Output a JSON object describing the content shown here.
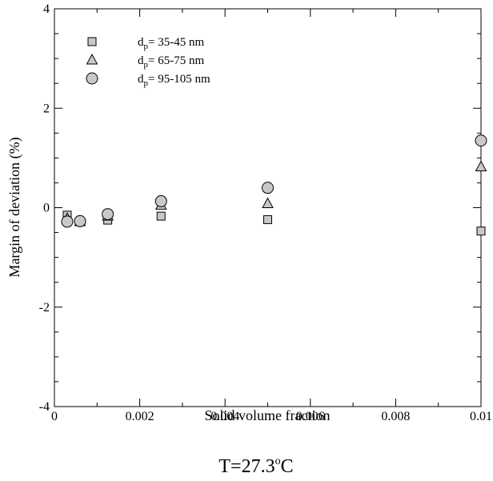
{
  "chart_data": {
    "type": "scatter",
    "xlabel": "Solid volume fraction",
    "ylabel": "Margin of deviation (%)",
    "xlim": [
      0,
      0.01
    ],
    "ylim": [
      -4,
      4
    ],
    "x_ticks": [
      "0",
      "0.002",
      "0.004",
      "0.006",
      "0.008",
      "0.01"
    ],
    "y_ticks": [
      "-4",
      "-2",
      "0",
      "2",
      "4"
    ],
    "legend_position": "top-left",
    "series": [
      {
        "label_main": "d",
        "label_sub": "p",
        "label_rest": "= 35-45 nm",
        "marker": "square",
        "color": "#c8c8c8",
        "x": [
          0.0003,
          0.0006,
          0.00125,
          0.0025,
          0.005,
          0.01
        ],
        "y": [
          -0.15,
          -0.28,
          -0.25,
          -0.17,
          -0.24,
          -0.47
        ]
      },
      {
        "label_main": "d",
        "label_sub": "p",
        "label_rest": "= 65-75 nm",
        "marker": "triangle",
        "color": "#c8c8c8",
        "x": [
          0.0003,
          0.0006,
          0.00125,
          0.0025,
          0.005,
          0.01
        ],
        "y": [
          -0.22,
          -0.28,
          -0.17,
          0.05,
          0.08,
          0.82
        ]
      },
      {
        "label_main": "d",
        "label_sub": "p",
        "label_rest": "= 95-105 nm",
        "marker": "circle",
        "color": "#c8c8c8",
        "x": [
          0.0003,
          0.0006,
          0.00125,
          0.0025,
          0.005,
          0.01
        ],
        "y": [
          -0.28,
          -0.27,
          -0.13,
          0.13,
          0.4,
          1.35
        ]
      }
    ]
  },
  "caption": {
    "main": "T=27.3",
    "sup": "o",
    "unit": "C"
  }
}
